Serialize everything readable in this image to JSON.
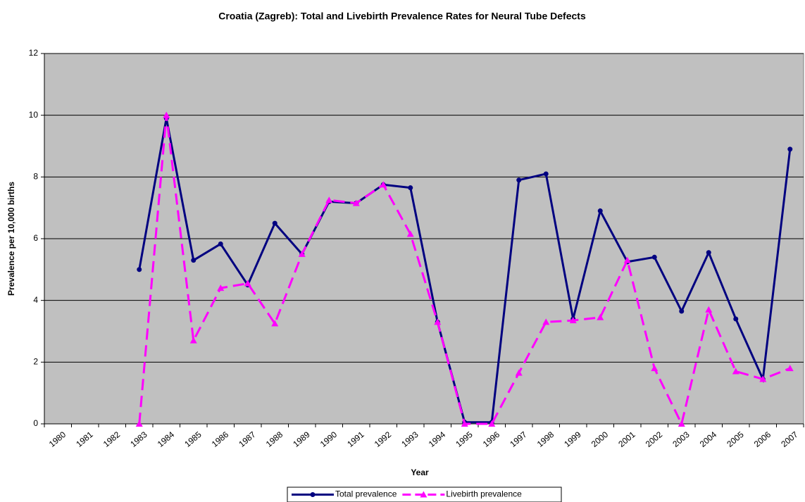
{
  "chart_data": {
    "type": "line",
    "title": "Croatia (Zagreb): Total and Livebirth Prevalence Rates for Neural Tube Defects",
    "x_label": "Year",
    "y_label": "Prevalence per 10,000 births",
    "categories": [
      "1980",
      "1981",
      "1982",
      "1983",
      "1984",
      "1985",
      "1986",
      "1987",
      "1988",
      "1989",
      "1990",
      "1991",
      "1992",
      "1993",
      "1994",
      "1995",
      "1996",
      "1997",
      "1998",
      "1999",
      "2000",
      "2001",
      "2002",
      "2003",
      "2004",
      "2005",
      "2006",
      "2007"
    ],
    "series": [
      {
        "name": "Total prevalence",
        "color": "#000080",
        "marker": "circle",
        "dashed": false,
        "values": [
          null,
          null,
          null,
          5.0,
          9.9,
          5.3,
          5.83,
          4.5,
          6.5,
          5.5,
          7.2,
          7.15,
          7.75,
          7.65,
          3.3,
          0.05,
          0.05,
          7.9,
          8.1,
          3.4,
          6.9,
          5.25,
          5.4,
          3.65,
          5.55,
          3.4,
          1.45,
          8.9
        ]
      },
      {
        "name": "Livebirth prevalence",
        "color": "#ff00ff",
        "marker": "triangle",
        "dashed": true,
        "values": [
          null,
          null,
          null,
          0,
          10.0,
          2.7,
          4.4,
          4.55,
          3.25,
          5.5,
          7.25,
          7.15,
          7.75,
          6.15,
          3.3,
          0,
          0,
          1.65,
          3.3,
          3.35,
          3.45,
          5.3,
          1.8,
          0,
          3.7,
          1.7,
          1.45,
          1.8
        ]
      }
    ],
    "ylim": [
      0,
      12
    ],
    "yticks": [
      0,
      2,
      4,
      6,
      8,
      10,
      12
    ],
    "grid": true,
    "legend": "bottom"
  }
}
